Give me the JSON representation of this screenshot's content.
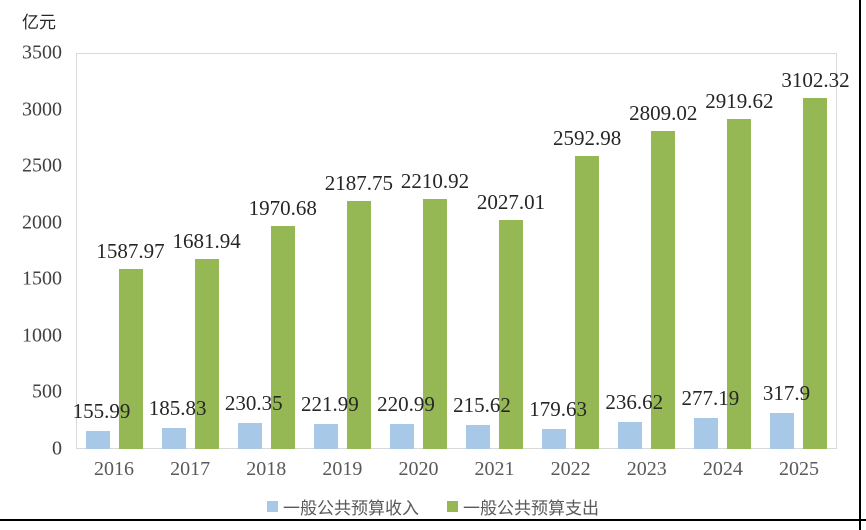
{
  "y_axis": {
    "unit": "亿元",
    "tick_values": [
      0,
      500,
      1000,
      1500,
      2000,
      2500,
      3000,
      3500
    ]
  },
  "colors": {
    "revenue": "#a8c8e8",
    "expenditure": "#95b854",
    "plot_border": "#d9d9d9",
    "cell_border": "#000000"
  },
  "chart_data": {
    "type": "bar",
    "categories": [
      "2016",
      "2017",
      "2018",
      "2019",
      "2020",
      "2021",
      "2022",
      "2023",
      "2024",
      "2025"
    ],
    "series": [
      {
        "name": "一般公共预算收入",
        "color": "#a8c8e8",
        "values": [
          155.99,
          185.83,
          230.35,
          221.99,
          220.99,
          215.62,
          179.63,
          236.62,
          277.19,
          317.9
        ]
      },
      {
        "name": "一般公共预算支出",
        "color": "#95b854",
        "values": [
          1587.97,
          1681.94,
          1970.68,
          2187.75,
          2210.92,
          2027.01,
          2592.98,
          2809.02,
          2919.62,
          3102.32
        ]
      }
    ],
    "title": "",
    "xlabel": "",
    "ylabel": "亿元",
    "ylim": [
      0,
      3500
    ],
    "ytick_step": 500,
    "grid": false,
    "legend_position": "bottom",
    "data_labels": true
  }
}
